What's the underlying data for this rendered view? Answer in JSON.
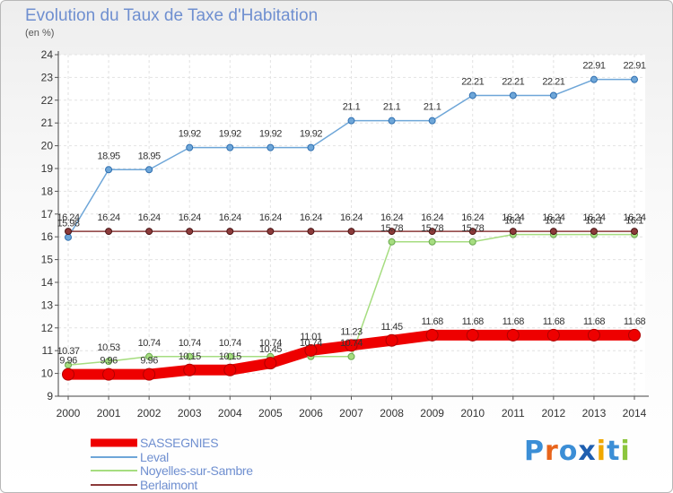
{
  "title": "Evolution du Taux de Taxe d'Habitation",
  "unit": "(en %)",
  "logo": {
    "text": "Proxiti",
    "letters": [
      "P",
      "r",
      "o",
      "x",
      "i",
      "t",
      "i"
    ],
    "colors": [
      "#3b8ed6",
      "#e8641b",
      "#3b8ed6",
      "#1f5fb0",
      "#f0a800",
      "#3b8ed6",
      "#8cc63e"
    ]
  },
  "chart_data": {
    "type": "line",
    "title": "Evolution du Taux de Taxe d'Habitation",
    "ylabel": "(en %)",
    "xlabel": "",
    "x": [
      "2000",
      "2001",
      "2002",
      "2003",
      "2004",
      "2005",
      "2006",
      "2007",
      "2008",
      "2009",
      "2010",
      "2011",
      "2012",
      "2013",
      "2014"
    ],
    "ylim": [
      9,
      24
    ],
    "yticks": [
      "9",
      "10",
      "11",
      "12",
      "13",
      "14",
      "15",
      "16",
      "17",
      "18",
      "19",
      "20",
      "21",
      "22",
      "23",
      "24"
    ],
    "grid": true,
    "legend_position": "bottom-left",
    "series": [
      {
        "name": "SASSEGNIES",
        "color": "#ee0000",
        "values": [
          9.96,
          9.96,
          9.96,
          10.15,
          10.15,
          10.45,
          11.01,
          11.23,
          11.45,
          11.68,
          11.68,
          11.68,
          11.68,
          11.68,
          11.68
        ],
        "labels": [
          "9.96",
          "9.96",
          "9.96",
          "10.15",
          "10.15",
          "10.45",
          "11.01",
          "11.23",
          "11.45",
          "11.68",
          "11.68",
          "11.68",
          "11.68",
          "11.68",
          "11.68"
        ]
      },
      {
        "name": "Leval",
        "color": "#6ea6d8",
        "values": [
          15.98,
          18.95,
          18.95,
          19.92,
          19.92,
          19.92,
          19.92,
          21.1,
          21.1,
          21.1,
          22.21,
          22.21,
          22.21,
          22.91,
          22.91
        ],
        "labels": [
          "15.98",
          "18.95",
          "18.95",
          "19.92",
          "19.92",
          "19.92",
          "19.92",
          "21.1",
          "21.1",
          "21.1",
          "22.21",
          "22.21",
          "22.21",
          "22.91",
          "22.91"
        ]
      },
      {
        "name": "Noyelles-sur-Sambre",
        "color": "#a6dd80",
        "values": [
          10.37,
          10.53,
          10.74,
          10.74,
          10.74,
          10.74,
          10.74,
          10.74,
          15.78,
          15.78,
          15.78,
          16.1,
          16.1,
          16.1,
          16.1
        ],
        "labels": [
          "10.37",
          "10.53",
          "10.74",
          "10.74",
          "10.74",
          "10.74",
          "10.74",
          "10.74",
          "15.78",
          "15.78",
          "15.78",
          "16.1",
          "16.1",
          "16.1",
          "16.1"
        ]
      },
      {
        "name": "Berlaimont",
        "color": "#8b3a3a",
        "values": [
          16.24,
          16.24,
          16.24,
          16.24,
          16.24,
          16.24,
          16.24,
          16.24,
          16.24,
          16.24,
          16.24,
          16.24,
          16.24,
          16.24,
          16.24
        ],
        "labels": [
          "16.24",
          "16.24",
          "16.24",
          "16.24",
          "16.24",
          "16.24",
          "16.24",
          "16.24",
          "16.24",
          "16.24",
          "16.24",
          "16.24",
          "16.24",
          "16.24",
          "16.24"
        ]
      }
    ]
  }
}
